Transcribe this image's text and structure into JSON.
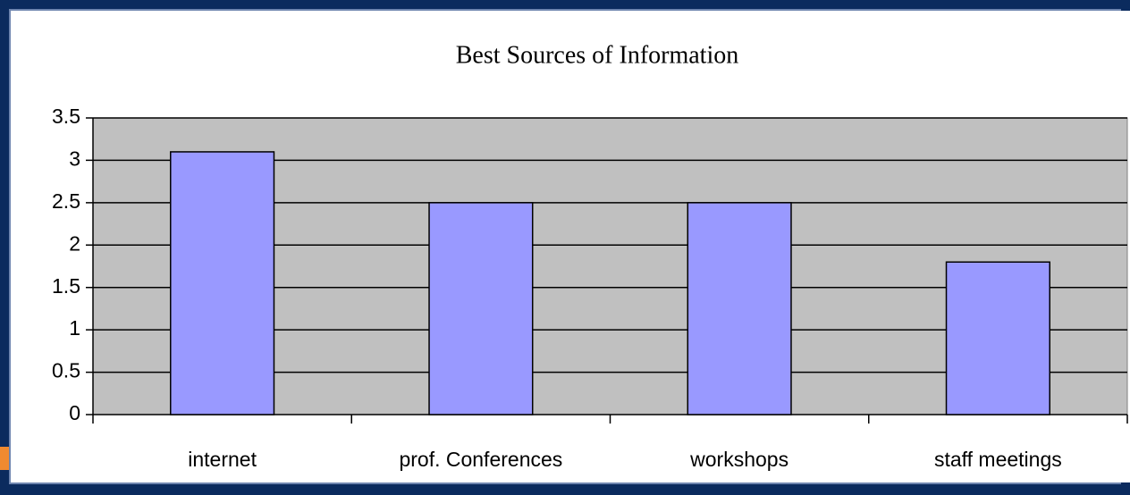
{
  "chart_data": {
    "type": "bar",
    "title": "Best Sources of Information",
    "categories": [
      "internet",
      "prof. Conferences",
      "workshops",
      "staff meetings"
    ],
    "values": [
      3.1,
      2.5,
      2.5,
      1.8
    ],
    "color": "#9999ff",
    "ylim": [
      0,
      3.5
    ],
    "yticks": [
      0,
      0.5,
      1,
      1.5,
      2,
      2.5,
      3,
      3.5
    ],
    "grid": true
  }
}
